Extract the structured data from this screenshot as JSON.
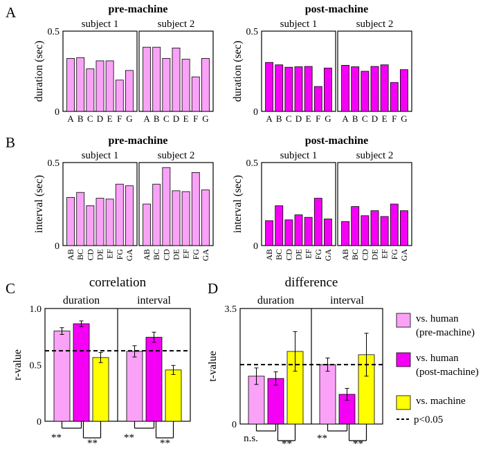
{
  "colors": {
    "pre": "#f9a2f7",
    "post": "#f400f4",
    "machine": "#ffff00",
    "edge": "#000000"
  },
  "panel_labels": {
    "A": "A",
    "B": "B",
    "C": "C",
    "D": "D"
  },
  "chart_data": [
    {
      "type": "bar",
      "panel": "A",
      "group": "pre-machine",
      "subject": "subject 1",
      "categories": [
        "A",
        "B",
        "C",
        "D",
        "E",
        "F",
        "G"
      ],
      "values": [
        0.33,
        0.335,
        0.265,
        0.315,
        0.315,
        0.195,
        0.255
      ],
      "ylabel": "duration (sec)",
      "ylim": [
        0,
        0.5
      ],
      "yticks": [
        "0",
        "0.5"
      ],
      "color": "pre"
    },
    {
      "type": "bar",
      "panel": "A",
      "group": "pre-machine",
      "subject": "subject 2",
      "categories": [
        "A",
        "B",
        "C",
        "D",
        "E",
        "F",
        "G"
      ],
      "values": [
        0.4,
        0.4,
        0.33,
        0.395,
        0.325,
        0.215,
        0.33
      ],
      "ylim": [
        0,
        0.5
      ],
      "color": "pre"
    },
    {
      "type": "bar",
      "panel": "A",
      "group": "post-machine",
      "subject": "subject 1",
      "categories": [
        "A",
        "B",
        "C",
        "D",
        "E",
        "F",
        "G"
      ],
      "values": [
        0.305,
        0.29,
        0.275,
        0.278,
        0.28,
        0.155,
        0.27
      ],
      "ylabel": "duration (sec)",
      "ylim": [
        0,
        0.5
      ],
      "yticks": [
        "0",
        "0.5"
      ],
      "color": "post"
    },
    {
      "type": "bar",
      "panel": "A",
      "group": "post-machine",
      "subject": "subject 2",
      "categories": [
        "A",
        "B",
        "C",
        "D",
        "E",
        "F",
        "G"
      ],
      "values": [
        0.287,
        0.278,
        0.25,
        0.28,
        0.29,
        0.18,
        0.26
      ],
      "ylim": [
        0,
        0.5
      ],
      "color": "post"
    },
    {
      "type": "bar",
      "panel": "B",
      "group": "pre-machine",
      "subject": "subject 1",
      "categories": [
        "AB",
        "BC",
        "CD",
        "DE",
        "EF",
        "FG",
        "GA"
      ],
      "values": [
        0.29,
        0.32,
        0.24,
        0.285,
        0.28,
        0.37,
        0.36
      ],
      "ylabel": "interval (sec)",
      "ylim": [
        0,
        0.5
      ],
      "yticks": [
        "0",
        "0.5"
      ],
      "color": "pre"
    },
    {
      "type": "bar",
      "panel": "B",
      "group": "pre-machine",
      "subject": "subject 2",
      "categories": [
        "AB",
        "BC",
        "CD",
        "DE",
        "EF",
        "FG",
        "GA"
      ],
      "values": [
        0.25,
        0.37,
        0.47,
        0.33,
        0.325,
        0.44,
        0.335
      ],
      "ylim": [
        0,
        0.5
      ],
      "color": "pre"
    },
    {
      "type": "bar",
      "panel": "B",
      "group": "post-machine",
      "subject": "subject 1",
      "categories": [
        "AB",
        "BC",
        "CD",
        "DE",
        "EF",
        "FG",
        "GA"
      ],
      "values": [
        0.15,
        0.24,
        0.155,
        0.185,
        0.17,
        0.285,
        0.16
      ],
      "ylabel": "interval (sec)",
      "ylim": [
        0,
        0.5
      ],
      "yticks": [
        "0",
        "0.5"
      ],
      "color": "post"
    },
    {
      "type": "bar",
      "panel": "B",
      "group": "post-machine",
      "subject": "subject 2",
      "categories": [
        "AB",
        "BC",
        "CD",
        "DE",
        "EF",
        "FG",
        "GA"
      ],
      "values": [
        0.145,
        0.235,
        0.18,
        0.21,
        0.175,
        0.25,
        0.21
      ],
      "ylim": [
        0,
        0.5
      ],
      "color": "post"
    },
    {
      "type": "bar",
      "panel": "C",
      "title": "correlation",
      "ylabel": "r-value",
      "ylim": [
        0,
        1.0
      ],
      "yticks": [
        "0",
        "0.5",
        "1.0"
      ],
      "threshold": 0.625,
      "groups": [
        {
          "label": "duration",
          "values": [
            0.8,
            0.865,
            0.565
          ],
          "errors": [
            0.03,
            0.025,
            0.045
          ]
        },
        {
          "label": "interval",
          "values": [
            0.62,
            0.745,
            0.455
          ],
          "errors": [
            0.05,
            0.045,
            0.04
          ]
        }
      ],
      "significance": [
        {
          "left": "**",
          "right": "**"
        },
        {
          "left": "**",
          "right": "**"
        }
      ]
    },
    {
      "type": "bar",
      "panel": "D",
      "title": "difference",
      "ylabel": "t-value",
      "ylim": [
        0,
        3.5
      ],
      "yticks": [
        "0",
        "3.5"
      ],
      "threshold": 1.8,
      "groups": [
        {
          "label": "duration",
          "values": [
            1.45,
            1.38,
            2.2
          ],
          "errors": [
            0.25,
            0.2,
            0.6
          ]
        },
        {
          "label": "interval",
          "values": [
            1.8,
            0.9,
            2.1
          ],
          "errors": [
            0.2,
            0.18,
            0.65
          ]
        }
      ],
      "significance": [
        {
          "left": "n.s.",
          "right": "**"
        },
        {
          "left": "**",
          "right": "**"
        }
      ]
    }
  ],
  "legend": {
    "items": [
      {
        "line1": "vs. human",
        "line2": "(pre-machine)",
        "color": "pre"
      },
      {
        "line1": "vs. human",
        "line2": "(post-machine)",
        "color": "post"
      },
      {
        "line1": "vs. machine",
        "line2": "",
        "color": "machine"
      }
    ],
    "threshold_label": "p<0.05"
  }
}
